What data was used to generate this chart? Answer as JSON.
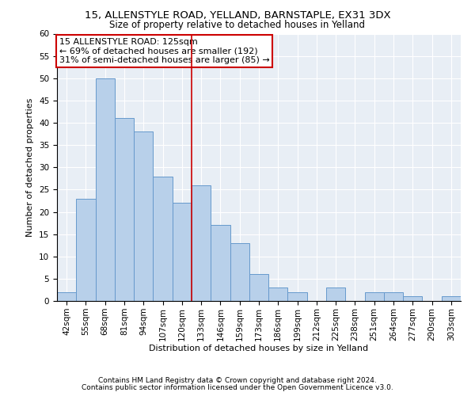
{
  "title1": "15, ALLENSTYLE ROAD, YELLAND, BARNSTAPLE, EX31 3DX",
  "title2": "Size of property relative to detached houses in Yelland",
  "xlabel": "Distribution of detached houses by size in Yelland",
  "ylabel": "Number of detached properties",
  "footer1": "Contains HM Land Registry data © Crown copyright and database right 2024.",
  "footer2": "Contains public sector information licensed under the Open Government Licence v3.0.",
  "annotation_line1": "15 ALLENSTYLE ROAD: 125sqm",
  "annotation_line2": "← 69% of detached houses are smaller (192)",
  "annotation_line3": "31% of semi-detached houses are larger (85) →",
  "bar_labels": [
    "42sqm",
    "55sqm",
    "68sqm",
    "81sqm",
    "94sqm",
    "107sqm",
    "120sqm",
    "133sqm",
    "146sqm",
    "159sqm",
    "173sqm",
    "186sqm",
    "199sqm",
    "212sqm",
    "225sqm",
    "238sqm",
    "251sqm",
    "264sqm",
    "277sqm",
    "290sqm",
    "303sqm"
  ],
  "bar_values": [
    2,
    23,
    50,
    41,
    38,
    28,
    22,
    26,
    17,
    13,
    6,
    3,
    2,
    0,
    3,
    0,
    2,
    2,
    1,
    0,
    1
  ],
  "bar_color": "#b8d0ea",
  "bar_edge_color": "#6699cc",
  "vline_color": "#cc0000",
  "annotation_box_color": "#cc0000",
  "ylim": [
    0,
    60
  ],
  "yticks": [
    0,
    5,
    10,
    15,
    20,
    25,
    30,
    35,
    40,
    45,
    50,
    55,
    60
  ],
  "bg_color": "#e8eef5",
  "grid_color": "#ffffff",
  "title_fontsize": 9.5,
  "subtitle_fontsize": 8.5,
  "axis_label_fontsize": 8,
  "tick_fontsize": 7.5,
  "annotation_fontsize": 8,
  "footer_fontsize": 6.5
}
